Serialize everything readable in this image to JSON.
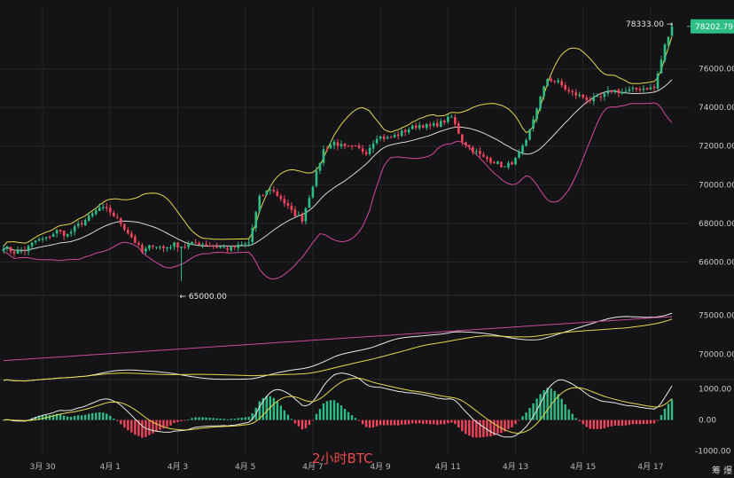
{
  "caption": "2小时BTC",
  "corner_text": "筹 爆",
  "colors": {
    "background": "#141416",
    "grid": "#26262a",
    "up": "#2ebd85",
    "down": "#f6465d",
    "bb_upper": "#e6d84a",
    "bb_middle": "#d6d6d6",
    "bb_lower": "#d04a9e",
    "price_tag": "#2ebd85"
  },
  "chart_data": [
    {
      "type": "candlestick",
      "panel": "price",
      "ylim": [
        64500,
        79200
      ],
      "yticks": [
        {
          "value": 66000,
          "label": "66000.00"
        },
        {
          "value": 68000,
          "label": "68000.00"
        },
        {
          "value": 70000,
          "label": "70000.00"
        },
        {
          "value": 72000,
          "label": "72000.00"
        },
        {
          "value": 74000,
          "label": "74000.00"
        },
        {
          "value": 76000,
          "label": "76000.00"
        }
      ],
      "current_price": {
        "value": 78202.79,
        "label": "78202.79"
      },
      "high_annotation": {
        "value": 78333.0,
        "label": "78333.00",
        "arrow": "→"
      },
      "low_annotation": {
        "value": 65000.0,
        "label": "65000.00",
        "arrow": "←"
      },
      "close_anchors": [
        [
          0,
          66800
        ],
        [
          3,
          66500
        ],
        [
          6,
          66600
        ],
        [
          9,
          67100
        ],
        [
          12,
          67200
        ],
        [
          15,
          67600
        ],
        [
          18,
          67400
        ],
        [
          21,
          67900
        ],
        [
          24,
          68300
        ],
        [
          27,
          68800
        ],
        [
          30,
          68600
        ],
        [
          33,
          68000
        ],
        [
          36,
          67300
        ],
        [
          39,
          66500
        ],
        [
          42,
          66900
        ],
        [
          45,
          66700
        ],
        [
          48,
          66900
        ],
        [
          51,
          66800
        ],
        [
          54,
          67000
        ],
        [
          57,
          66900
        ],
        [
          60,
          66800
        ],
        [
          63,
          66700
        ],
        [
          66,
          66800
        ],
        [
          69,
          67000
        ],
        [
          72,
          69300
        ],
        [
          75,
          69800
        ],
        [
          78,
          69300
        ],
        [
          81,
          68600
        ],
        [
          84,
          68200
        ],
        [
          87,
          70000
        ],
        [
          90,
          71800
        ],
        [
          93,
          72200
        ],
        [
          96,
          71900
        ],
        [
          99,
          71900
        ],
        [
          102,
          71700
        ],
        [
          105,
          72500
        ],
        [
          108,
          72400
        ],
        [
          111,
          72600
        ],
        [
          114,
          72900
        ],
        [
          117,
          73100
        ],
        [
          120,
          73000
        ],
        [
          123,
          73200
        ],
        [
          126,
          73500
        ],
        [
          129,
          72300
        ],
        [
          132,
          71800
        ],
        [
          135,
          71400
        ],
        [
          138,
          71200
        ],
        [
          141,
          70900
        ],
        [
          144,
          71300
        ],
        [
          147,
          72200
        ],
        [
          150,
          74000
        ],
        [
          153,
          75500
        ],
        [
          156,
          75300
        ],
        [
          159,
          74800
        ],
        [
          162,
          74600
        ],
        [
          165,
          74400
        ],
        [
          168,
          74500
        ],
        [
          171,
          74900
        ],
        [
          174,
          74800
        ],
        [
          177,
          74900
        ],
        [
          180,
          75000
        ],
        [
          183,
          75000
        ],
        [
          186,
          77200
        ],
        [
          188,
          78200
        ]
      ],
      "x_ticks": [
        {
          "bar": 11,
          "label": "3月 30"
        },
        {
          "bar": 30,
          "label": "4月 1"
        },
        {
          "bar": 49,
          "label": "4月 3"
        },
        {
          "bar": 68,
          "label": "4月 5"
        },
        {
          "bar": 87,
          "label": "4月 7"
        },
        {
          "bar": 106,
          "label": "4月 9"
        },
        {
          "bar": 125,
          "label": "4月 11"
        },
        {
          "bar": 144,
          "label": "4月 13"
        },
        {
          "bar": 163,
          "label": "4月 15"
        },
        {
          "bar": 182,
          "label": "4月 17"
        }
      ]
    },
    {
      "type": "line",
      "panel": "moving-averages",
      "ylim": [
        67000,
        77000
      ],
      "yticks": [
        {
          "value": 70000,
          "label": "70000.00"
        },
        {
          "value": 75000,
          "label": "75000.00"
        }
      ]
    },
    {
      "type": "bar",
      "panel": "macd",
      "ylim": [
        -1100,
        1250
      ],
      "yticks": [
        {
          "value": 1000,
          "label": "1000.00"
        },
        {
          "value": 0,
          "label": "0.00"
        },
        {
          "value": -1000,
          "label": "-1000.00"
        }
      ]
    }
  ]
}
